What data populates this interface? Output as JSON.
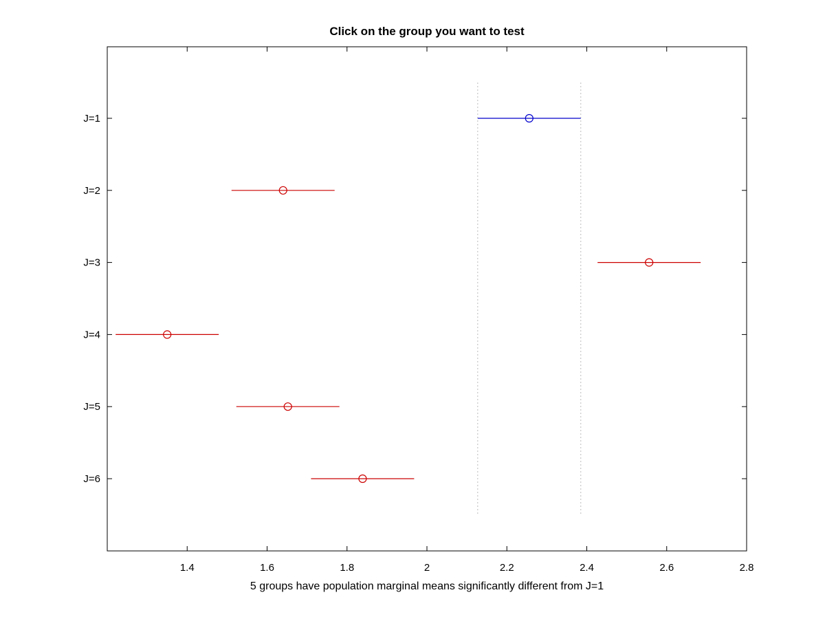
{
  "chart_data": {
    "type": "errorbar",
    "title": "Click on the group you want to test",
    "xlabel": "5 groups have population marginal means significantly different from J=1",
    "ylabel": "",
    "xlim": [
      1.2,
      2.8
    ],
    "xticks": [
      "1.4",
      "1.6",
      "1.8",
      "2",
      "2.2",
      "2.4",
      "2.6",
      "2.8"
    ],
    "xtick_values": [
      1.4,
      1.6,
      1.8,
      2.0,
      2.2,
      2.4,
      2.6,
      2.8
    ],
    "grid": false,
    "reference_interval": [
      2.127,
      2.385
    ],
    "groups": [
      {
        "label": "J=1",
        "mean": 2.256,
        "lower": 2.127,
        "upper": 2.385,
        "selected": true
      },
      {
        "label": "J=2",
        "mean": 1.64,
        "lower": 1.511,
        "upper": 1.769,
        "selected": false
      },
      {
        "label": "J=3",
        "mean": 2.556,
        "lower": 2.427,
        "upper": 2.685,
        "selected": false
      },
      {
        "label": "J=4",
        "mean": 1.35,
        "lower": 1.221,
        "upper": 1.479,
        "selected": false
      },
      {
        "label": "J=5",
        "mean": 1.652,
        "lower": 1.523,
        "upper": 1.781,
        "selected": false
      },
      {
        "label": "J=6",
        "mean": 1.839,
        "lower": 1.71,
        "upper": 1.968,
        "selected": false
      }
    ],
    "colors": {
      "selected": "#0000cc",
      "significant": "#cc0000",
      "reference_line": "#bbbbbb",
      "axes": "#000000"
    }
  }
}
